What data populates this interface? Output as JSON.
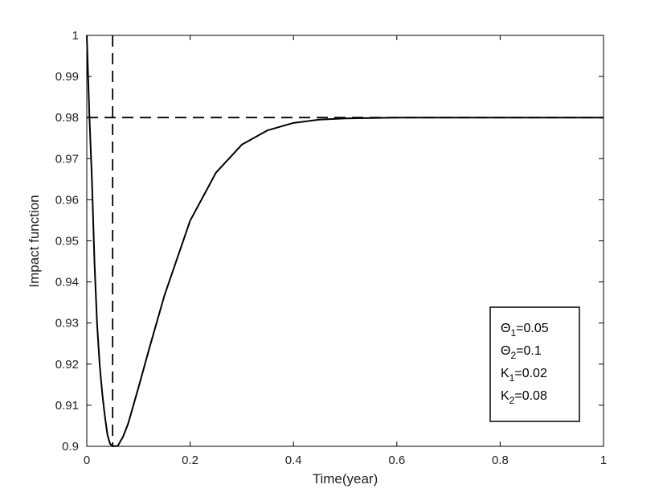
{
  "chart_data": {
    "type": "line",
    "xlabel": "Time(year)",
    "ylabel": "Impact function",
    "xlim": [
      0,
      1
    ],
    "ylim": [
      0.9,
      1.0
    ],
    "xticks": [
      0,
      0.2,
      0.4,
      0.6,
      0.8,
      1
    ],
    "xtick_labels": [
      "0",
      "0.2",
      "0.4",
      "0.6",
      "0.8",
      "1"
    ],
    "yticks": [
      0.9,
      0.91,
      0.92,
      0.93,
      0.94,
      0.95,
      0.96,
      0.97,
      0.98,
      0.99,
      1
    ],
    "ytick_labels": [
      "0.9",
      "0.91",
      "0.92",
      "0.93",
      "0.94",
      "0.95",
      "0.96",
      "0.97",
      "0.98",
      "0.99",
      "1"
    ],
    "grid": false,
    "series": [
      {
        "style": "solid",
        "color": "#000000",
        "x": [
          0,
          0.005,
          0.01,
          0.015,
          0.02,
          0.025,
          0.03,
          0.035,
          0.04,
          0.045,
          0.05,
          0.06,
          0.07,
          0.08,
          0.1,
          0.12,
          0.15,
          0.2,
          0.25,
          0.3,
          0.35,
          0.4,
          0.45,
          0.5,
          0.55,
          0.6,
          0.65,
          0.7,
          0.75,
          0.8,
          0.85,
          0.9,
          0.95,
          1.0
        ],
        "y": [
          1.0,
          0.9806,
          0.9647,
          0.9444,
          0.9296,
          0.9197,
          0.9128,
          0.9073,
          0.9028,
          0.9006,
          0.8998,
          0.9001,
          0.9023,
          0.9055,
          0.9143,
          0.9234,
          0.9366,
          0.9549,
          0.9666,
          0.9734,
          0.9769,
          0.9787,
          0.9795,
          0.9798,
          0.9799,
          0.98,
          0.98,
          0.98,
          0.98,
          0.98,
          0.98,
          0.98,
          0.98,
          0.98
        ]
      }
    ],
    "reference_lines": [
      {
        "orientation": "horizontal",
        "value": 0.98,
        "style": "dashed",
        "color": "#000000"
      },
      {
        "orientation": "vertical",
        "value": 0.05,
        "style": "dashed",
        "color": "#000000"
      }
    ],
    "legend": {
      "placement": "bottom-right",
      "entries": [
        {
          "symbol": "Θ",
          "sub": "1",
          "value": "=0.05"
        },
        {
          "symbol": "Θ",
          "sub": "2",
          "value": "=0.1"
        },
        {
          "symbol": "K",
          "sub": "1",
          "value": "=0.02"
        },
        {
          "symbol": "K",
          "sub": "2",
          "value": "=0.08"
        }
      ]
    }
  }
}
